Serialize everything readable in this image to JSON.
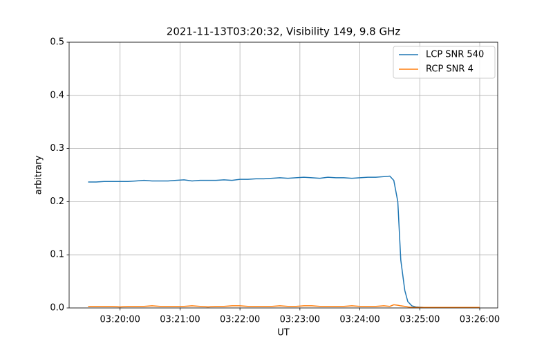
{
  "chart_data": {
    "type": "line",
    "title": "2021-11-13T03:20:32, Visibility 149, 9.8 GHz",
    "xlabel": "UT",
    "ylabel": "arbitrary",
    "x": [
      "03:19:28",
      "03:19:36",
      "03:19:44",
      "03:19:52",
      "03:20:00",
      "03:20:08",
      "03:20:16",
      "03:20:24",
      "03:20:32",
      "03:20:40",
      "03:20:48",
      "03:20:56",
      "03:21:04",
      "03:21:12",
      "03:21:20",
      "03:21:28",
      "03:21:36",
      "03:21:44",
      "03:21:52",
      "03:22:00",
      "03:22:08",
      "03:22:16",
      "03:22:24",
      "03:22:32",
      "03:22:40",
      "03:22:48",
      "03:22:56",
      "03:23:04",
      "03:23:12",
      "03:23:20",
      "03:23:28",
      "03:23:36",
      "03:23:44",
      "03:23:52",
      "03:24:00",
      "03:24:08",
      "03:24:16",
      "03:24:24",
      "03:24:30",
      "03:24:34",
      "03:24:38",
      "03:24:41",
      "03:24:45",
      "03:24:48",
      "03:24:52",
      "03:24:56",
      "03:25:04",
      "03:25:12",
      "03:25:20",
      "03:25:28",
      "03:25:36",
      "03:25:44",
      "03:25:52",
      "03:26:00"
    ],
    "series": [
      {
        "name": "LCP SNR 540",
        "color": "#1f77b4",
        "values": [
          0.237,
          0.237,
          0.238,
          0.238,
          0.238,
          0.238,
          0.239,
          0.24,
          0.239,
          0.239,
          0.239,
          0.24,
          0.241,
          0.239,
          0.24,
          0.24,
          0.24,
          0.241,
          0.24,
          0.242,
          0.242,
          0.243,
          0.243,
          0.244,
          0.245,
          0.244,
          0.245,
          0.246,
          0.245,
          0.244,
          0.246,
          0.245,
          0.245,
          0.244,
          0.245,
          0.246,
          0.246,
          0.247,
          0.248,
          0.24,
          0.2,
          0.09,
          0.033,
          0.012,
          0.004,
          0.002,
          0.001,
          0.001,
          0.001,
          0.001,
          0.001,
          0.001,
          0.001,
          0.001
        ]
      },
      {
        "name": "RCP SNR 4",
        "color": "#ff7f0e",
        "values": [
          0.003,
          0.003,
          0.003,
          0.003,
          0.002,
          0.003,
          0.003,
          0.003,
          0.004,
          0.003,
          0.003,
          0.003,
          0.003,
          0.004,
          0.003,
          0.002,
          0.003,
          0.003,
          0.004,
          0.004,
          0.003,
          0.003,
          0.003,
          0.003,
          0.004,
          0.003,
          0.003,
          0.004,
          0.004,
          0.003,
          0.003,
          0.003,
          0.003,
          0.004,
          0.003,
          0.003,
          0.003,
          0.004,
          0.003,
          0.006,
          0.005,
          0.004,
          0.003,
          0.002,
          0.001,
          0.001,
          0.001,
          0.001,
          0.001,
          0.001,
          0.001,
          0.001,
          0.001,
          0.001
        ]
      }
    ],
    "xlim": [
      "03:19:09",
      "03:26:18"
    ],
    "xticks": [
      "03:20:00",
      "03:21:00",
      "03:22:00",
      "03:23:00",
      "03:24:00",
      "03:25:00",
      "03:26:00"
    ],
    "ylim": [
      0,
      0.5
    ],
    "yticks": [
      {
        "value": 0,
        "label": "0.0"
      },
      0.1,
      0.2,
      0.3,
      0.4,
      0.5
    ],
    "grid": true,
    "legend": "upper right"
  }
}
